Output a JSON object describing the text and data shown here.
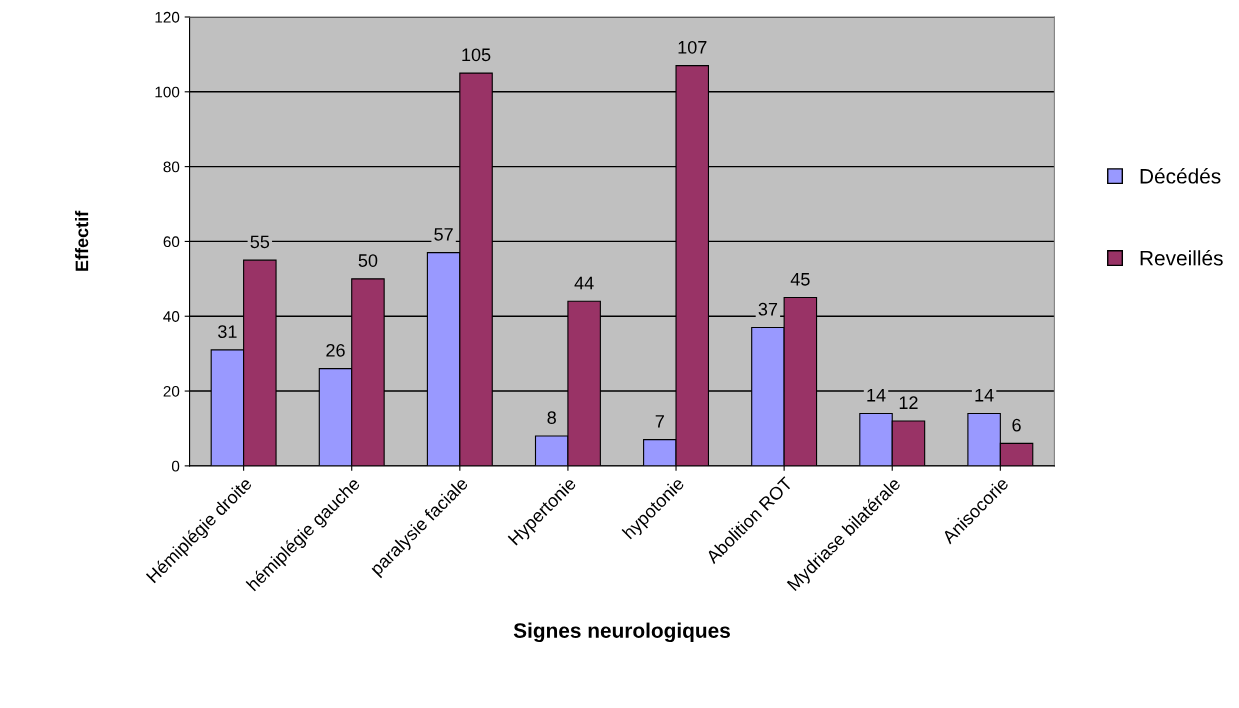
{
  "chart_data": {
    "type": "bar",
    "xlabel": "Signes neurologiques",
    "ylabel": "Effectif",
    "categories": [
      "Hémiplégie droite",
      "hémiplégie gauche",
      "paralysie faciale",
      "Hypertonie",
      "hypotonie",
      "Abolition ROT",
      "Mydriase bilatérale",
      "Anisocorie"
    ],
    "series": [
      {
        "name": "Décédés",
        "color": "#9999ff",
        "values": [
          31,
          26,
          57,
          8,
          7,
          37,
          14,
          14
        ]
      },
      {
        "name": "Reveillés",
        "color": "#993366",
        "values": [
          55,
          50,
          105,
          44,
          107,
          45,
          12,
          6
        ]
      }
    ],
    "ylim": [
      0,
      120
    ],
    "yticks": [
      0,
      20,
      40,
      60,
      80,
      100,
      120
    ],
    "grid": "y",
    "legend": "right",
    "data_labels": true
  }
}
